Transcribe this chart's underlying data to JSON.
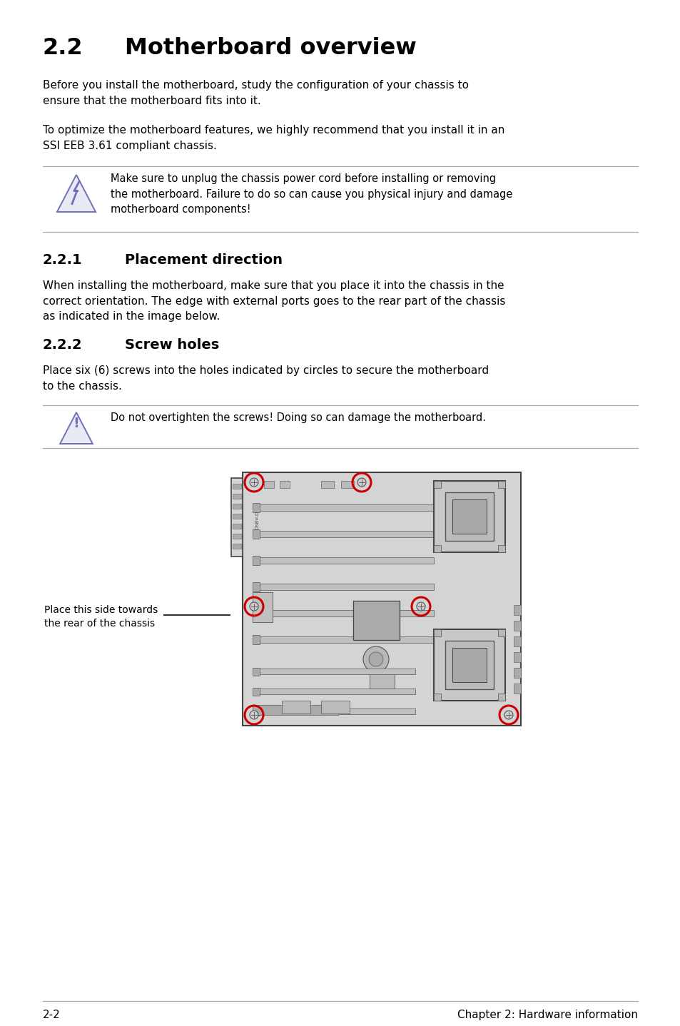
{
  "bg_color": "#ffffff",
  "title_num": "2.2",
  "title_text": "Motherboard overview",
  "section221_num": "2.2.1",
  "section221_text": "Placement direction",
  "section222_num": "2.2.2",
  "section222_text": "Screw holes",
  "para1": "Before you install the motherboard, study the configuration of your chassis to\nensure that the motherboard fits into it.",
  "para2": "To optimize the motherboard features, we highly recommend that you install it in an\nSSI EEB 3.61 compliant chassis.",
  "warning1": "Make sure to unplug the chassis power cord before installing or removing\nthe motherboard. Failure to do so can cause you physical injury and damage\nmotherboard components!",
  "para3": "When installing the motherboard, make sure that you place it into the chassis in the\ncorrect orientation. The edge with external ports goes to the rear part of the chassis\nas indicated in the image below.",
  "para4": "Place six (6) screws into the holes indicated by circles to secure the motherboard\nto the chassis.",
  "warning2": "Do not overtighten the screws! Doing so can damage the motherboard.",
  "side_label": "Place this side towards\nthe rear of the chassis",
  "footer_left": "2-2",
  "footer_right": "Chapter 2: Hardware information",
  "warning_color": "#7070b8",
  "screw_color": "#cc0000",
  "board_fill": "#d4d4d4",
  "board_edge": "#444444",
  "line_color": "#333333",
  "sep_color": "#aaaaaa"
}
